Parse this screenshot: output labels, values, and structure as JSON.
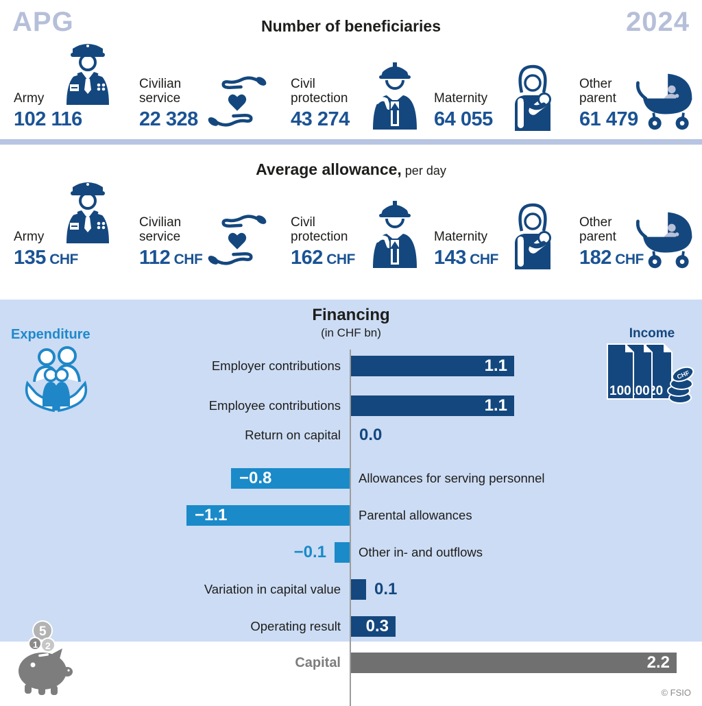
{
  "header": {
    "brand": "APG",
    "year": "2024"
  },
  "beneficiaries": {
    "title": "Number of beneficiaries",
    "items": [
      {
        "label": "Army",
        "value": "102 116",
        "icon": "army-icon"
      },
      {
        "label": "Civilian\nservice",
        "value": "22 328",
        "icon": "hands-heart-icon"
      },
      {
        "label": "Civil\nprotection",
        "value": "43 274",
        "icon": "civil-protection-icon"
      },
      {
        "label": "Maternity",
        "value": "64 055",
        "icon": "maternity-icon"
      },
      {
        "label": "Other\nparent",
        "value": "61 479",
        "icon": "pram-icon"
      }
    ]
  },
  "allowance": {
    "title_bold": "Average allowance,",
    "title_suffix": " per day",
    "unit": "CHF",
    "items": [
      {
        "label": "Army",
        "value": "135",
        "unit": "CHF",
        "icon": "army-icon"
      },
      {
        "label": "Civilian\nservice",
        "value": "112",
        "unit": "CHF",
        "icon": "hands-heart-icon"
      },
      {
        "label": "Civil\nprotection",
        "value": "162",
        "unit": "CHF",
        "icon": "civil-protection-icon"
      },
      {
        "label": "Maternity",
        "value": "143",
        "unit": "CHF",
        "icon": "maternity-icon"
      },
      {
        "label": "Other\nparent",
        "value": "182",
        "unit": "CHF",
        "icon": "pram-icon"
      }
    ]
  },
  "financing": {
    "title": "Financing",
    "subtitle": "(in CHF bn)",
    "expenditure_label": "Expenditure",
    "income_label": "Income",
    "copyright": "© FSIO"
  },
  "chart_data": {
    "type": "bar",
    "orientation": "horizontal",
    "title": "Financing",
    "subtitle": "(in CHF bn)",
    "unit": "CHF bn",
    "xlim": [
      -1.2,
      2.3
    ],
    "grid": false,
    "categories": [
      "Employer contributions",
      "Employee contributions",
      "Return on capital",
      "Allowances for serving personnel",
      "Parental allowances",
      "Other in- and outflows",
      "Variation in capital value",
      "Operating result",
      "Capital"
    ],
    "values": [
      1.1,
      1.1,
      0.0,
      -0.8,
      -1.1,
      -0.1,
      0.1,
      0.3,
      2.2
    ],
    "rows": [
      {
        "label": "Employer contributions",
        "value": 1.1,
        "display": "1.1",
        "group": "income",
        "label_side": "left",
        "value_placement": "inside"
      },
      {
        "label": "Employee contributions",
        "value": 1.1,
        "display": "1.1",
        "group": "income",
        "label_side": "left",
        "value_placement": "inside"
      },
      {
        "label": "Return on capital",
        "value": 0.0,
        "display": "0.0",
        "group": "income",
        "label_side": "left",
        "value_placement": "outside"
      },
      {
        "label": "Allowances for serving personnel",
        "value": -0.8,
        "display": "−0.8",
        "group": "expenditure",
        "label_side": "right",
        "value_placement": "inside"
      },
      {
        "label": "Parental allowances",
        "value": -1.1,
        "display": "−1.1",
        "group": "expenditure",
        "label_side": "right",
        "value_placement": "inside"
      },
      {
        "label": "Other in- and outflows",
        "value": -0.1,
        "display": "−0.1",
        "group": "expenditure",
        "label_side": "right",
        "value_placement": "outside"
      },
      {
        "label": "Variation in capital value",
        "value": 0.1,
        "display": "0.1",
        "group": "income",
        "label_side": "left",
        "value_placement": "outside"
      },
      {
        "label": "Operating result",
        "value": 0.3,
        "display": "0.3",
        "group": "income",
        "label_side": "left",
        "value_placement": "inside"
      },
      {
        "label": "Capital",
        "value": 2.2,
        "display": "2.2",
        "group": "capital",
        "label_side": "left",
        "value_placement": "inside"
      }
    ],
    "colors": {
      "income": "#14477e",
      "expenditure": "#1a8ac9",
      "capital": "#707070"
    }
  },
  "colors": {
    "navy": "#14477e",
    "light_blue": "#1a8ac9",
    "panel_bg": "#ccdcf4",
    "divider": "#b7c4e2",
    "brand_text": "#b6bfd9",
    "number_text": "#1b5394",
    "gray_bar": "#707070"
  }
}
